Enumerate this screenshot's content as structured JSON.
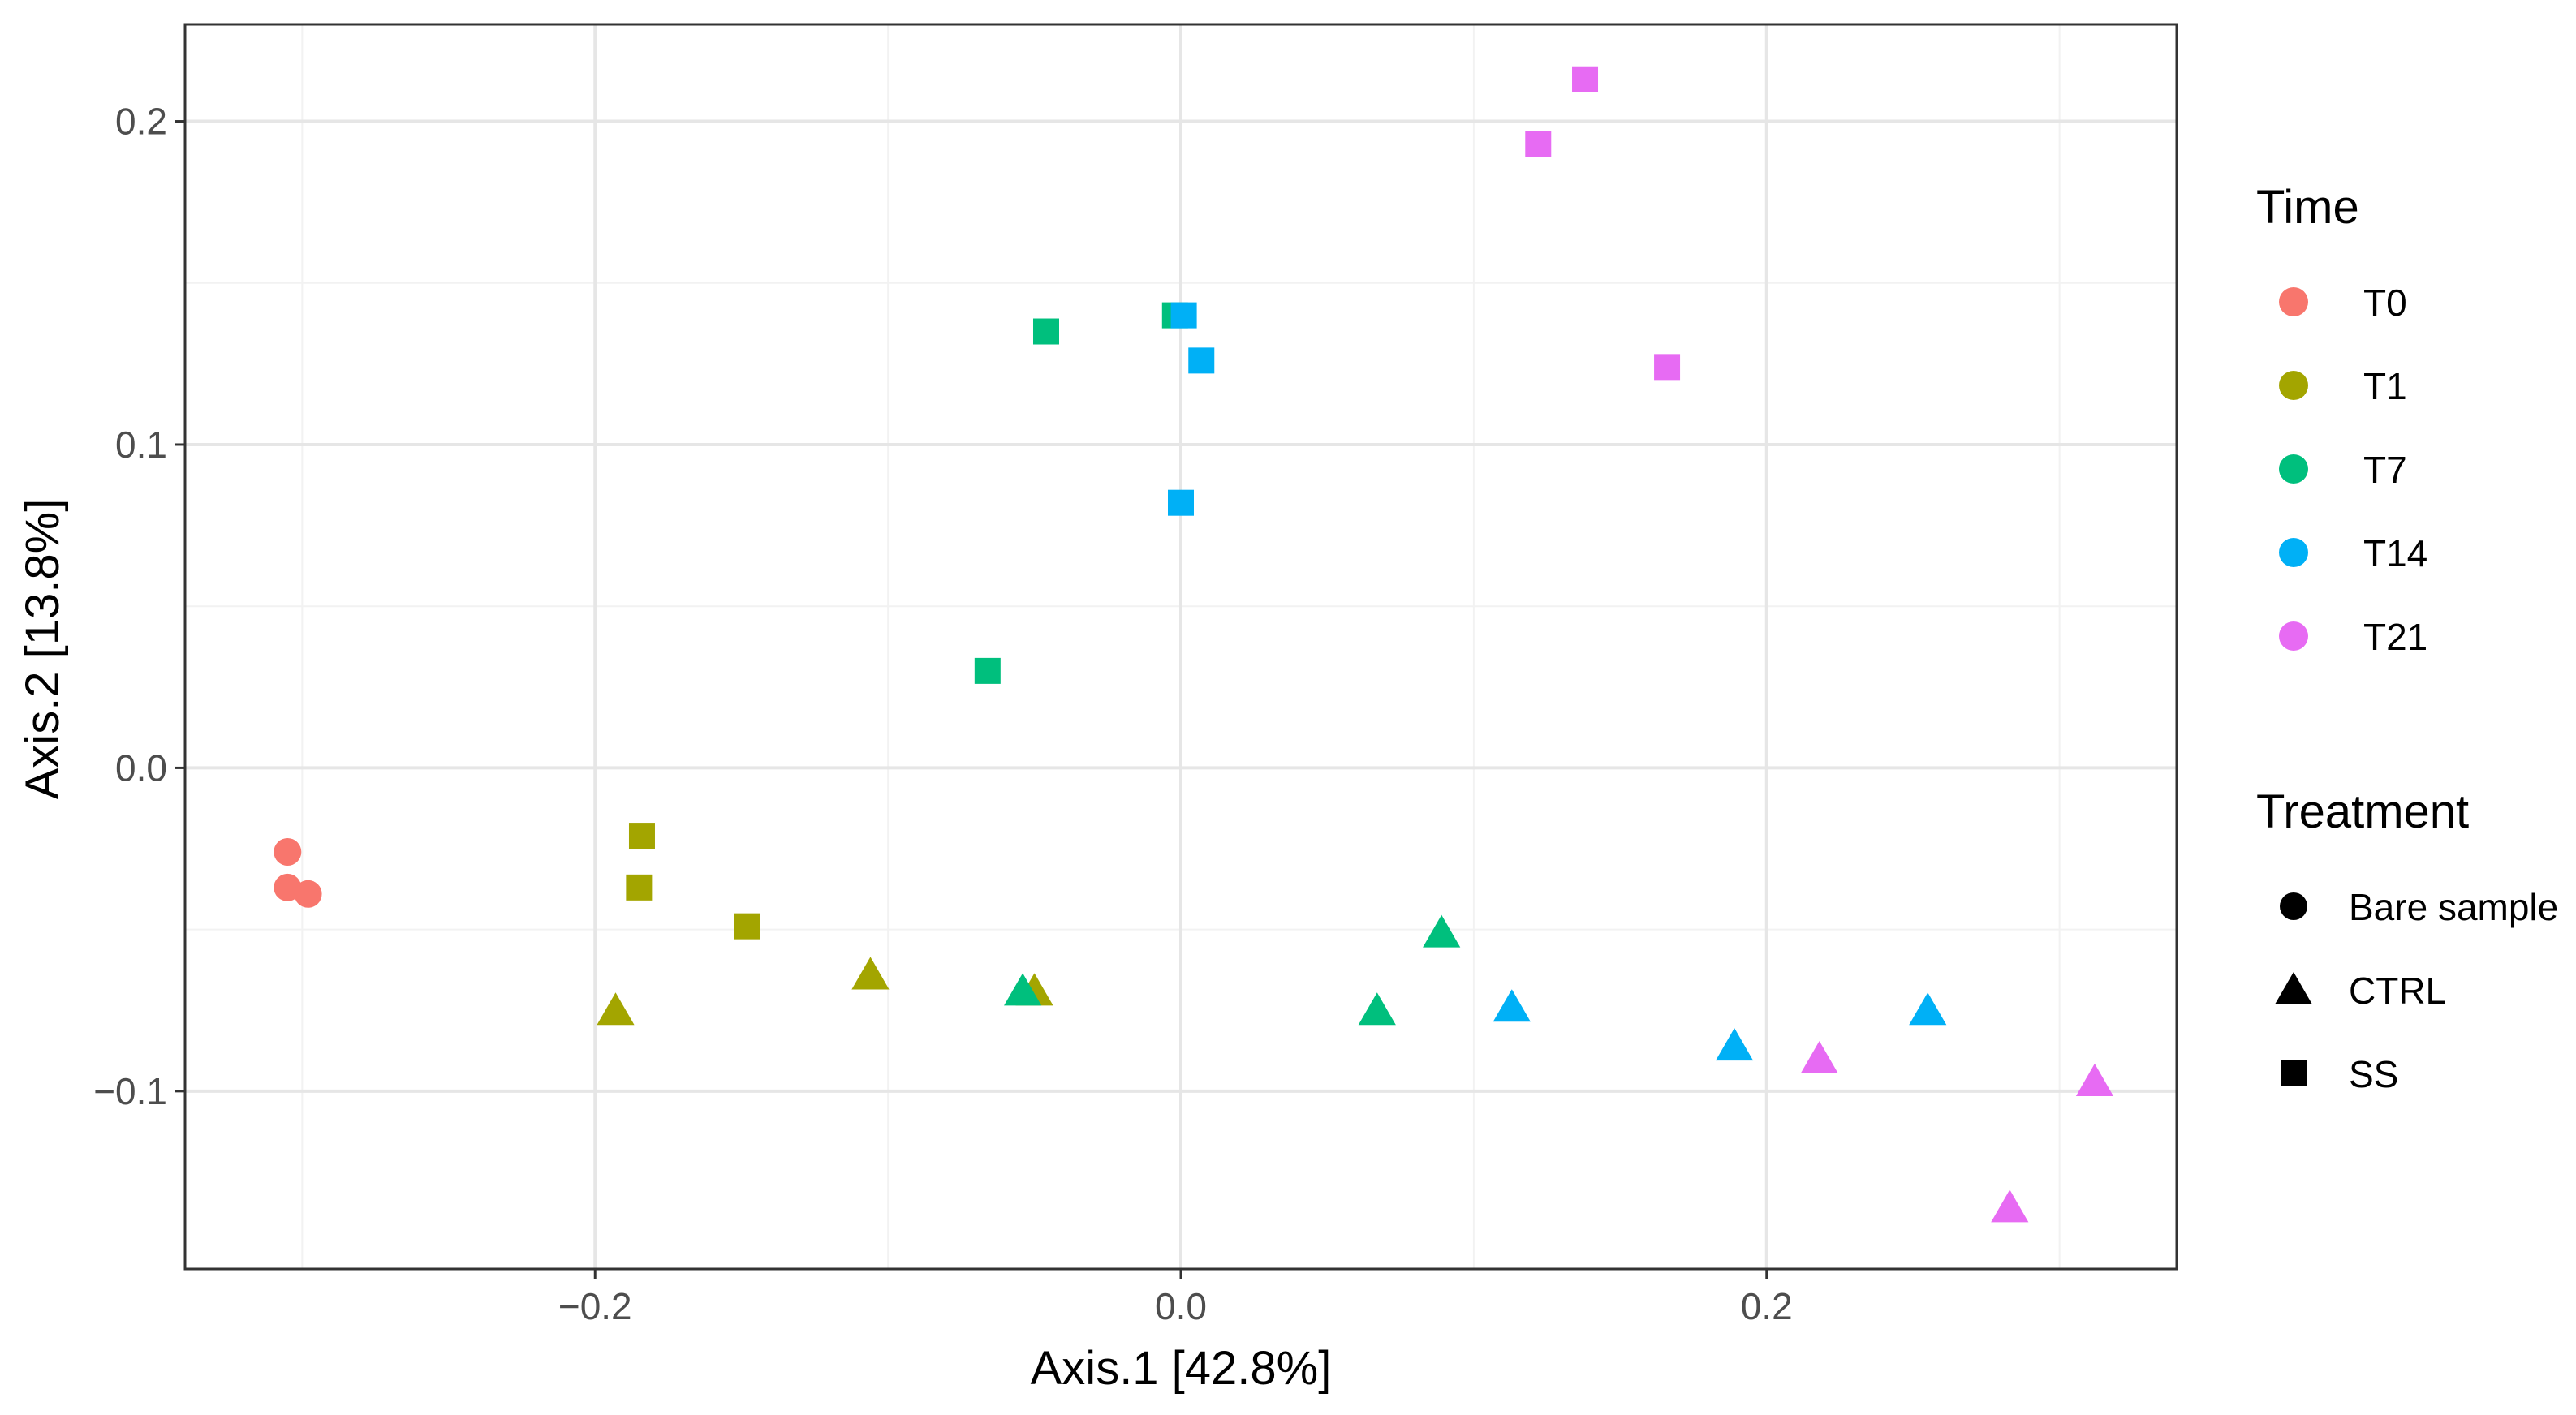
{
  "chart_data": {
    "type": "scatter",
    "title": "",
    "xlabel": "Axis.1   [42.8%]",
    "ylabel": "Axis.2   [13.8%]",
    "xlim": [
      -0.34,
      0.34
    ],
    "ylim": [
      -0.155,
      0.23
    ],
    "x_ticks": [
      -0.2,
      0.0,
      0.2
    ],
    "x_tick_labels": [
      "−0.2",
      "0.0",
      "0.2"
    ],
    "y_ticks": [
      -0.1,
      0.0,
      0.1,
      0.2
    ],
    "y_tick_labels": [
      "−0.1",
      "0.0",
      "0.1",
      "0.2"
    ],
    "x_minor_ticks": [
      -0.3,
      -0.1,
      0.1,
      0.3
    ],
    "y_minor_ticks": [
      -0.05,
      0.05,
      0.15
    ],
    "grid": true,
    "legend": {
      "placement": "right",
      "color_title": "Time",
      "shape_title": "Treatment",
      "colors": [
        {
          "label": "T0",
          "color": "#F8766D"
        },
        {
          "label": "T1",
          "color": "#A3A500"
        },
        {
          "label": "T7",
          "color": "#00BF7D"
        },
        {
          "label": "T14",
          "color": "#00B0F6"
        },
        {
          "label": "T21",
          "color": "#E76BF3"
        }
      ],
      "shapes": [
        {
          "label": "Bare sample",
          "shape": "circle"
        },
        {
          "label": "CTRL",
          "shape": "triangle"
        },
        {
          "label": "SS",
          "shape": "square"
        }
      ]
    },
    "points": [
      {
        "x": -0.305,
        "y": -0.026,
        "time": "T0",
        "treatment": "Bare sample"
      },
      {
        "x": -0.305,
        "y": -0.037,
        "time": "T0",
        "treatment": "Bare sample"
      },
      {
        "x": -0.298,
        "y": -0.039,
        "time": "T0",
        "treatment": "Bare sample"
      },
      {
        "x": -0.184,
        "y": -0.021,
        "time": "T1",
        "treatment": "SS"
      },
      {
        "x": -0.185,
        "y": -0.037,
        "time": "T1",
        "treatment": "SS"
      },
      {
        "x": -0.148,
        "y": -0.049,
        "time": "T1",
        "treatment": "SS"
      },
      {
        "x": -0.193,
        "y": -0.075,
        "time": "T1",
        "treatment": "CTRL"
      },
      {
        "x": -0.106,
        "y": -0.064,
        "time": "T1",
        "treatment": "CTRL"
      },
      {
        "x": -0.05,
        "y": -0.069,
        "time": "T1",
        "treatment": "CTRL"
      },
      {
        "x": -0.046,
        "y": 0.135,
        "time": "T7",
        "treatment": "SS"
      },
      {
        "x": -0.002,
        "y": 0.14,
        "time": "T7",
        "treatment": "SS"
      },
      {
        "x": -0.066,
        "y": 0.03,
        "time": "T7",
        "treatment": "SS"
      },
      {
        "x": -0.054,
        "y": -0.069,
        "time": "T7",
        "treatment": "CTRL"
      },
      {
        "x": 0.067,
        "y": -0.075,
        "time": "T7",
        "treatment": "CTRL"
      },
      {
        "x": 0.089,
        "y": -0.051,
        "time": "T7",
        "treatment": "CTRL"
      },
      {
        "x": 0.001,
        "y": 0.14,
        "time": "T14",
        "treatment": "SS"
      },
      {
        "x": 0.007,
        "y": 0.126,
        "time": "T14",
        "treatment": "SS"
      },
      {
        "x": 0.0,
        "y": 0.082,
        "time": "T14",
        "treatment": "SS"
      },
      {
        "x": 0.113,
        "y": -0.074,
        "time": "T14",
        "treatment": "CTRL"
      },
      {
        "x": 0.189,
        "y": -0.086,
        "time": "T14",
        "treatment": "CTRL"
      },
      {
        "x": 0.255,
        "y": -0.075,
        "time": "T14",
        "treatment": "CTRL"
      },
      {
        "x": 0.138,
        "y": 0.213,
        "time": "T21",
        "treatment": "SS"
      },
      {
        "x": 0.122,
        "y": 0.193,
        "time": "T21",
        "treatment": "SS"
      },
      {
        "x": 0.166,
        "y": 0.124,
        "time": "T21",
        "treatment": "SS"
      },
      {
        "x": 0.218,
        "y": -0.09,
        "time": "T21",
        "treatment": "CTRL"
      },
      {
        "x": 0.312,
        "y": -0.097,
        "time": "T21",
        "treatment": "CTRL"
      },
      {
        "x": 0.283,
        "y": -0.136,
        "time": "T21",
        "treatment": "CTRL"
      }
    ]
  }
}
